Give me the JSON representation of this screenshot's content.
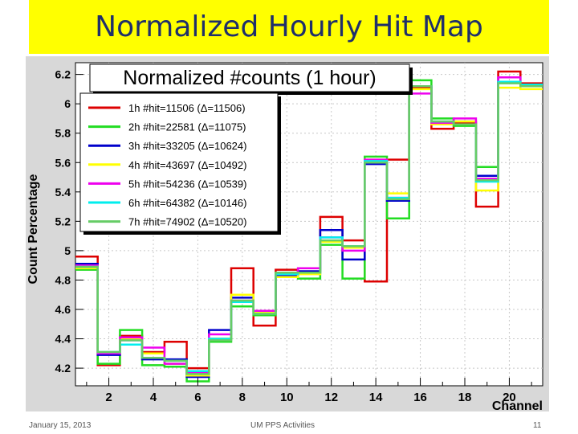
{
  "slide": {
    "title": "Normalized Hourly Hit Map",
    "footer_date": "January 15, 2013",
    "footer_center": "UM PPS Activities",
    "page_number": "11"
  },
  "chart_data": {
    "type": "line",
    "step": true,
    "title": "Normalized #counts (1 hour)",
    "xlabel": "Channel",
    "ylabel": "Count Percentage",
    "xlim": [
      0.5,
      21.5
    ],
    "ylim": [
      4.08,
      6.28
    ],
    "xticks": [
      2,
      4,
      6,
      8,
      10,
      12,
      14,
      16,
      18,
      20
    ],
    "yticks": [
      4.2,
      4.4,
      4.6,
      4.8,
      5,
      5.2,
      5.4,
      5.6,
      5.8,
      6,
      6.2
    ],
    "ytick_labels": [
      "4.2",
      "4.4",
      "4.6",
      "4.8",
      "5",
      "5.2",
      "5.4",
      "5.6",
      "5.8",
      "6",
      "6.2"
    ],
    "grid": true,
    "legend_position": "top-left",
    "x": [
      1,
      2,
      3,
      4,
      5,
      6,
      7,
      8,
      9,
      10,
      11,
      12,
      13,
      14,
      15,
      16,
      17,
      18,
      19,
      20,
      21
    ],
    "series": [
      {
        "name": "1h  #hit=11506 (Δ=11506)",
        "color": "#dd0000",
        "values": [
          4.96,
          4.22,
          4.42,
          4.31,
          4.38,
          4.2,
          4.4,
          4.88,
          4.49,
          4.87,
          4.85,
          5.23,
          5.07,
          4.79,
          5.62,
          6.11,
          5.83,
          5.87,
          5.3,
          6.22,
          6.14
        ]
      },
      {
        "name": "2h  #hit=22581 (Δ=11075)",
        "color": "#22dd22",
        "values": [
          4.87,
          4.23,
          4.46,
          4.22,
          4.21,
          4.11,
          4.38,
          4.62,
          4.56,
          4.85,
          4.81,
          5.04,
          4.81,
          5.64,
          5.22,
          6.16,
          5.9,
          5.85,
          5.57,
          6.15,
          6.13
        ]
      },
      {
        "name": "3h  #hit=33205 (Δ=10624)",
        "color": "#0000cc",
        "values": [
          4.91,
          4.29,
          4.39,
          4.26,
          4.26,
          4.14,
          4.46,
          4.68,
          4.59,
          4.83,
          4.86,
          5.14,
          4.94,
          5.59,
          5.34,
          6.12,
          5.87,
          5.88,
          5.51,
          6.18,
          6.12
        ]
      },
      {
        "name": "4h  #hit=43697 (Δ=10492)",
        "color": "#ffff00",
        "values": [
          4.88,
          4.3,
          4.4,
          4.3,
          4.23,
          4.15,
          4.4,
          4.7,
          4.58,
          4.82,
          4.84,
          5.06,
          5.02,
          5.62,
          5.39,
          6.1,
          5.86,
          5.88,
          5.41,
          6.11,
          6.1
        ]
      },
      {
        "name": "5h  #hit=54236 (Δ=10539)",
        "color": "#ee00ee",
        "values": [
          4.9,
          4.3,
          4.41,
          4.34,
          4.23,
          4.17,
          4.43,
          4.66,
          4.59,
          4.84,
          4.88,
          5.09,
          5.0,
          5.62,
          5.36,
          6.07,
          5.87,
          5.9,
          5.49,
          6.18,
          6.12
        ]
      },
      {
        "name": "6h  #hit=64382 (Δ=10146)",
        "color": "#00eeee",
        "values": [
          4.89,
          4.31,
          4.36,
          4.27,
          4.25,
          4.18,
          4.4,
          4.65,
          4.57,
          4.84,
          4.85,
          5.09,
          5.03,
          5.61,
          5.36,
          6.12,
          5.88,
          5.86,
          5.47,
          6.15,
          6.13
        ]
      },
      {
        "name": "7h  #hit=74902 (Δ=10520)",
        "color": "#66cc66",
        "values": [
          4.89,
          4.31,
          4.39,
          4.27,
          4.25,
          4.16,
          4.39,
          4.66,
          4.57,
          4.85,
          4.85,
          5.07,
          5.03,
          5.6,
          5.35,
          6.12,
          5.88,
          5.86,
          5.48,
          6.14,
          6.12
        ]
      }
    ]
  }
}
